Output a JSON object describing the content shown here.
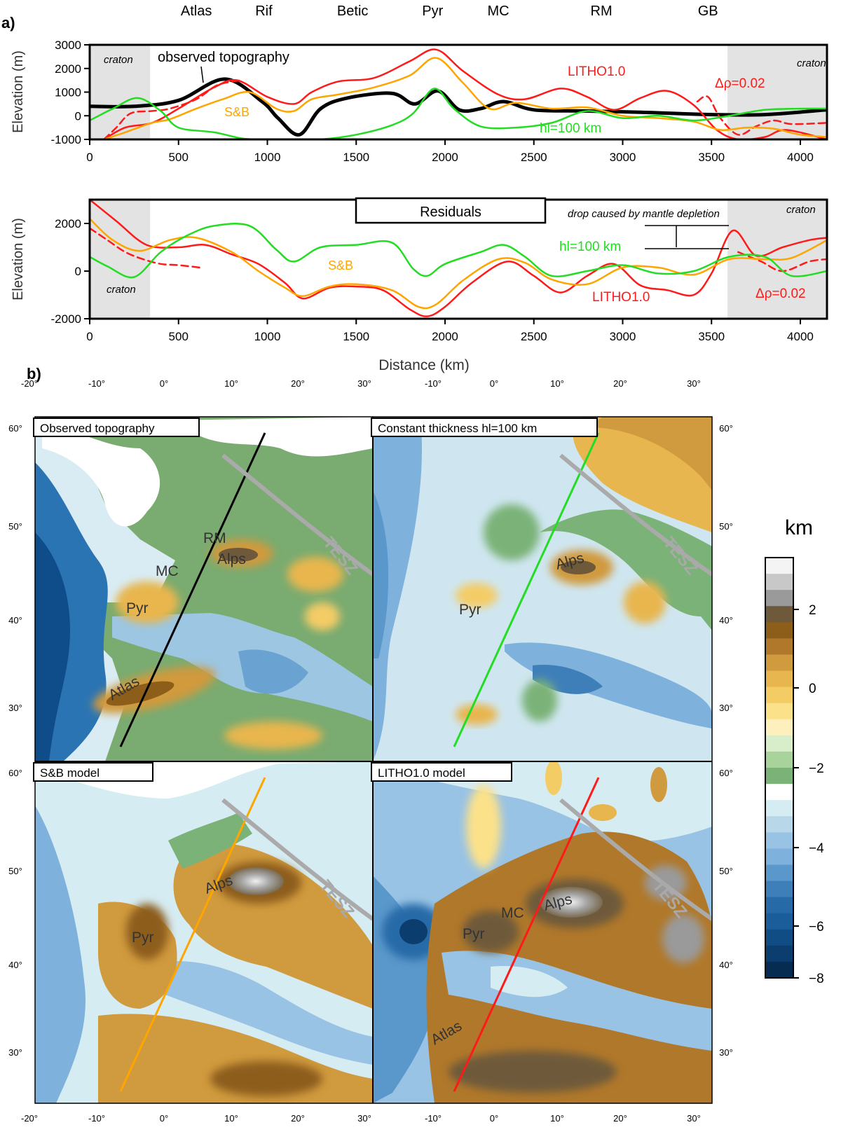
{
  "panel_a_label": "a)",
  "panel_b_label": "b)",
  "regions": [
    "Atlas",
    "Rif",
    "Betic",
    "Pyr",
    "MC",
    "RM",
    "GB"
  ],
  "colors": {
    "litho": "#ff1a1a",
    "sb": "#ffa500",
    "hl": "#22dd22",
    "observed": "#000000",
    "craton_fill": "#e3e3e3",
    "profile_gray": "#aaaaaa"
  },
  "chart_data": [
    {
      "type": "line",
      "panel": "a-top",
      "xlabel": "",
      "ylabel": "Elevation (m)",
      "xlim": [
        0,
        4150
      ],
      "ylim": [
        -1000,
        3000
      ],
      "xticks": [
        0,
        500,
        1000,
        1500,
        2000,
        2500,
        3000,
        3500,
        4000
      ],
      "yticks": [
        -1000,
        0,
        1000,
        2000,
        3000
      ],
      "regions": [
        {
          "name": "Atlas",
          "x": 600
        },
        {
          "name": "Rif",
          "x": 980
        },
        {
          "name": "Betic",
          "x": 1480
        },
        {
          "name": "Pyr",
          "x": 1930
        },
        {
          "name": "MC",
          "x": 2300
        },
        {
          "name": "RM",
          "x": 2880
        },
        {
          "name": "GB",
          "x": 3480
        }
      ],
      "cratons": [
        {
          "label": "craton",
          "x": [
            0,
            340
          ]
        },
        {
          "label": "craton",
          "x": [
            3590,
            4150
          ]
        }
      ],
      "annotations": [
        "observed topography",
        "LITHO1.0",
        "Δρ=0.02",
        "S&B",
        "hl=100 km"
      ],
      "series": [
        {
          "name": "observed topography",
          "color": "#000000",
          "width": 5,
          "x": [
            0,
            250,
            500,
            760,
            970,
            1060,
            1180,
            1300,
            1450,
            1700,
            1830,
            1960,
            2080,
            2200,
            2330,
            2500,
            2800,
            3100,
            3500,
            3800,
            4150
          ],
          "y": [
            400,
            400,
            650,
            1550,
            600,
            -100,
            -800,
            300,
            750,
            950,
            500,
            1050,
            250,
            300,
            600,
            250,
            200,
            150,
            50,
            50,
            250
          ]
        },
        {
          "name": "LITHO1.0",
          "color": "#ff1a1a",
          "width": 2.5,
          "x": [
            80,
            200,
            350,
            500,
            700,
            830,
            1000,
            1150,
            1250,
            1400,
            1600,
            1800,
            1950,
            2100,
            2300,
            2450,
            2650,
            2800,
            2950,
            3100,
            3250,
            3400,
            3530,
            3650,
            3800,
            3920,
            4150
          ],
          "y": [
            -1000,
            -500,
            -300,
            300,
            1200,
            1500,
            800,
            500,
            1000,
            1450,
            1600,
            2300,
            2800,
            1900,
            900,
            700,
            1150,
            800,
            250,
            750,
            1050,
            450,
            -600,
            -1000,
            -900,
            -600,
            -1000
          ]
        },
        {
          "name": "LITHO1.0 Δρ=0.02",
          "color": "#ff1a1a",
          "width": 2.5,
          "dash": "10,6",
          "x": [
            80,
            150,
            230,
            350,
            450,
            600,
            720,
            850
          ],
          "y": [
            -1000,
            -500,
            100,
            200,
            300,
            700,
            1300,
            1500
          ]
        },
        {
          "name": "LITHO1.0 Δρ=0.02",
          "color": "#ff1a1a",
          "width": 2.5,
          "dash": "10,6",
          "x": [
            3420,
            3480,
            3550,
            3650,
            3750,
            3850,
            3950,
            4150
          ],
          "y": [
            600,
            800,
            -100,
            -800,
            -450,
            -200,
            -350,
            -300
          ]
        },
        {
          "name": "S&B",
          "color": "#ffa500",
          "width": 2.5,
          "x": [
            80,
            200,
            350,
            450,
            600,
            750,
            900,
            1050,
            1150,
            1250,
            1400,
            1600,
            1800,
            1950,
            2100,
            2250,
            2400,
            2600,
            2800,
            3000,
            3200,
            3400,
            3550,
            3700,
            3850,
            4000,
            4150
          ],
          "y": [
            -1000,
            -700,
            -300,
            -150,
            300,
            700,
            1000,
            300,
            200,
            700,
            900,
            1200,
            1700,
            2450,
            1400,
            300,
            550,
            300,
            350,
            0,
            -100,
            -250,
            -600,
            -500,
            -550,
            -800,
            -900
          ]
        },
        {
          "name": "hl=100 km",
          "color": "#22dd22",
          "width": 2.5,
          "x": [
            0,
            130,
            270,
            400,
            500,
            700,
            850,
            950,
            1050,
            1150,
            1300,
            1500,
            1700,
            1820,
            1940,
            2050,
            2200,
            2400,
            2600,
            2800,
            3000,
            3200,
            3400,
            3600,
            3800,
            4000,
            4150
          ],
          "y": [
            -200,
            300,
            750,
            200,
            -500,
            -700,
            -950,
            -1000,
            -1000,
            -1000,
            -1000,
            -800,
            -400,
            100,
            1150,
            300,
            -450,
            -500,
            -300,
            200,
            -100,
            0,
            -200,
            0,
            250,
            300,
            300
          ]
        }
      ]
    },
    {
      "type": "line",
      "panel": "a-bottom",
      "title": "Residuals",
      "xlabel": "Distance (km)",
      "ylabel": "Elevation (m)",
      "xlim": [
        0,
        4150
      ],
      "ylim": [
        -2000,
        3000
      ],
      "xticks": [
        0,
        500,
        1000,
        1500,
        2000,
        2500,
        3000,
        3500,
        4000
      ],
      "yticks": [
        -2000,
        0,
        2000
      ],
      "cratons": [
        {
          "label": "craton",
          "x": [
            0,
            340
          ]
        },
        {
          "label": "craton",
          "x": [
            3590,
            4150
          ]
        }
      ],
      "annotations": [
        "drop caused by mantle depletion",
        "hl=100 km",
        "S&B",
        "LITHO1.0",
        "Δρ=0.02"
      ],
      "series": [
        {
          "name": "LITHO1.0",
          "color": "#ff1a1a",
          "width": 2.5,
          "x": [
            0,
            150,
            320,
            500,
            650,
            800,
            950,
            1100,
            1200,
            1350,
            1500,
            1650,
            1800,
            1900,
            2000,
            2150,
            2350,
            2500,
            2650,
            2800,
            2950,
            3100,
            3250,
            3400,
            3500,
            3620,
            3750,
            3900,
            4050,
            4150
          ],
          "y": [
            3000,
            2100,
            1100,
            1000,
            1100,
            700,
            300,
            -500,
            -1150,
            -700,
            -650,
            -800,
            -1600,
            -1900,
            -1500,
            -500,
            400,
            -200,
            -900,
            -200,
            300,
            -600,
            -800,
            -1000,
            -100,
            1700,
            650,
            1000,
            1300,
            1400
          ]
        },
        {
          "name": "Δρ=0.02",
          "color": "#ff1a1a",
          "width": 2.5,
          "dash": "10,6",
          "x": [
            0,
            100,
            200,
            300,
            400,
            500,
            620
          ],
          "y": [
            1800,
            1300,
            800,
            500,
            300,
            250,
            150
          ]
        },
        {
          "name": "Δρ=0.02",
          "color": "#ff1a1a",
          "width": 2.5,
          "dash": "10,6",
          "x": [
            3650,
            3780,
            3900,
            4050,
            4150
          ],
          "y": [
            800,
            400,
            0,
            400,
            500
          ]
        },
        {
          "name": "S&B",
          "color": "#ffa500",
          "width": 2.5,
          "x": [
            0,
            130,
            280,
            450,
            600,
            800,
            950,
            1100,
            1200,
            1350,
            1500,
            1700,
            1850,
            1950,
            2100,
            2300,
            2450,
            2600,
            2800,
            3000,
            3200,
            3400,
            3600,
            3800,
            3950,
            4150
          ],
          "y": [
            2200,
            1300,
            850,
            1300,
            1400,
            800,
            0,
            -700,
            -1050,
            -650,
            -550,
            -800,
            -1500,
            -1400,
            -400,
            500,
            350,
            -350,
            -550,
            150,
            150,
            -150,
            500,
            500,
            550,
            1300
          ]
        },
        {
          "name": "hl=100 km",
          "color": "#22dd22",
          "width": 2.5,
          "x": [
            0,
            100,
            250,
            400,
            550,
            700,
            900,
            1050,
            1150,
            1300,
            1500,
            1700,
            1820,
            1900,
            2000,
            2200,
            2330,
            2450,
            2600,
            2800,
            3000,
            3200,
            3400,
            3600,
            3800,
            3950,
            4150
          ],
          "y": [
            600,
            200,
            -250,
            800,
            1500,
            1900,
            1900,
            900,
            400,
            1000,
            1100,
            1200,
            100,
            -200,
            300,
            800,
            1100,
            600,
            -200,
            0,
            250,
            -100,
            0,
            600,
            600,
            -200,
            0
          ]
        }
      ]
    },
    {
      "type": "heatmap",
      "panel": "b",
      "colorbar": {
        "label": "km",
        "ticks": [
          2,
          0,
          -2,
          -4,
          -6,
          -8
        ],
        "stops": [
          "#f4f4f4",
          "#c8c8c8",
          "#9a9a9a",
          "#6e5a3a",
          "#8d5d1a",
          "#b0782a",
          "#d09a3e",
          "#e8b64e",
          "#f4cc66",
          "#fbe18a",
          "#fdf0bd",
          "#d8edc9",
          "#a8d49c",
          "#7ab277",
          "#ffffff",
          "#d6ecf3",
          "#b8d8ea",
          "#99c3e4",
          "#7eb1dc",
          "#5a97ca",
          "#3f7fb9",
          "#266ba8",
          "#1a5d9a",
          "#0f4d84",
          "#0b3d6e",
          "#072c52"
        ]
      },
      "lon_ticks": [
        "-20°",
        "-10°",
        "0°",
        "10°",
        "20°",
        "30°"
      ],
      "lat_ticks": [
        "60°",
        "50°",
        "40°",
        "30°"
      ],
      "maps": [
        {
          "title": "Observed topography",
          "labels": [
            "RM",
            "MC",
            "Alps",
            "Pyr",
            "Atlas",
            "TESZ"
          ],
          "line_color": "#000000"
        },
        {
          "title": "Constant thickness hl=100 km",
          "labels": [
            "Alps",
            "Pyr",
            "TESZ"
          ],
          "line_color": "#22dd22"
        },
        {
          "title": "S&B model",
          "labels": [
            "Alps",
            "Pyr",
            "TESZ"
          ],
          "line_color": "#ffa500"
        },
        {
          "title": "LITHO1.0 model",
          "labels": [
            "MC",
            "Alps",
            "Pyr",
            "Atlas",
            "TESZ"
          ],
          "line_color": "#ff1a1a"
        }
      ]
    }
  ]
}
